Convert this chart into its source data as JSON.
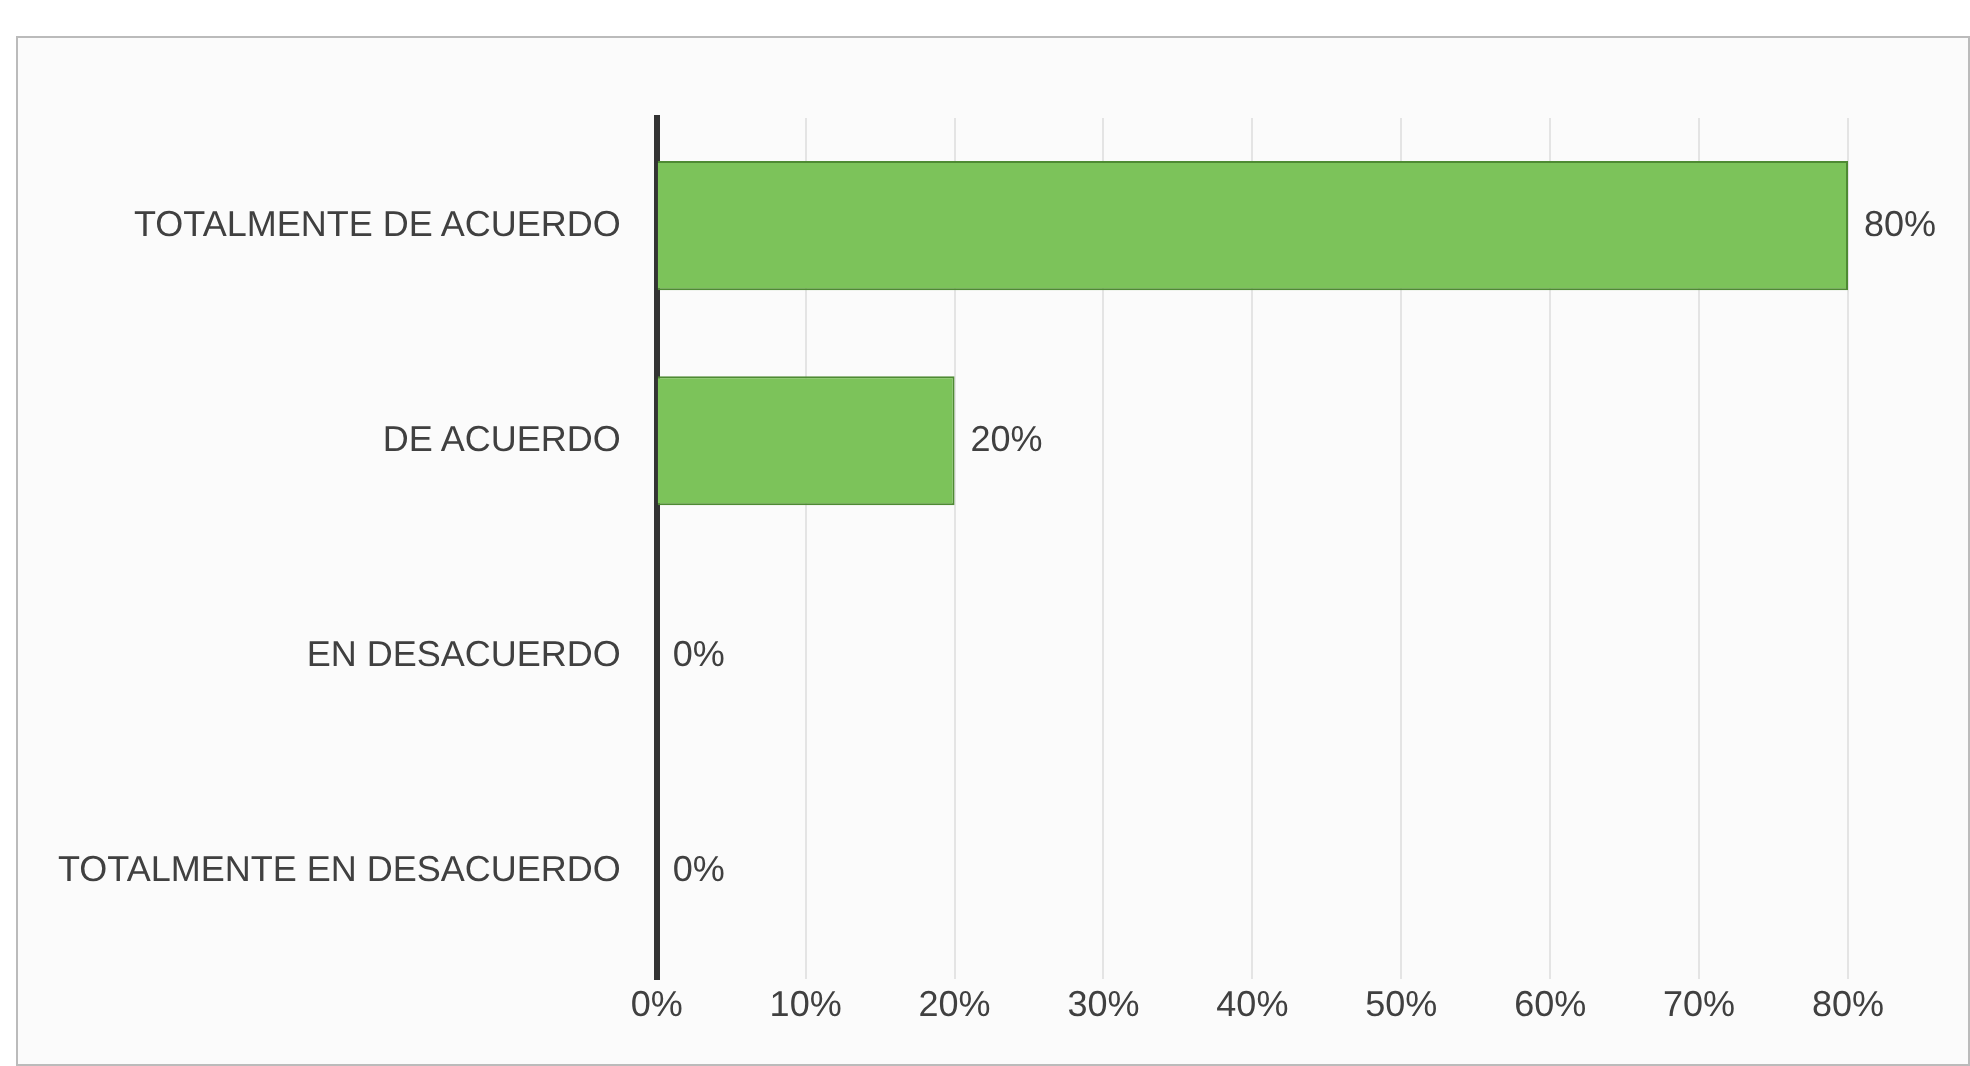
{
  "chart_data": {
    "type": "bar",
    "orientation": "horizontal",
    "categories": [
      "TOTALMENTE DE ACUERDO",
      "DE ACUERDO",
      "EN DESACUERDO",
      "TOTALMENTE EN DESACUERDO"
    ],
    "values": [
      80,
      20,
      0,
      0
    ],
    "value_labels": [
      "80%",
      "20%",
      "0%",
      "0%"
    ],
    "color": "#7cc35a",
    "xlim": [
      0,
      80
    ],
    "xticks": [
      {
        "value": 0,
        "label": "0%"
      },
      {
        "value": 10,
        "label": "10%"
      },
      {
        "value": 20,
        "label": "20%"
      },
      {
        "value": 30,
        "label": "30%"
      },
      {
        "value": 40,
        "label": "40%"
      },
      {
        "value": 50,
        "label": "50%"
      },
      {
        "value": 60,
        "label": "60%"
      },
      {
        "value": 70,
        "label": "70%"
      },
      {
        "value": 80,
        "label": "80%"
      }
    ],
    "grid": "x",
    "legend": false
  }
}
